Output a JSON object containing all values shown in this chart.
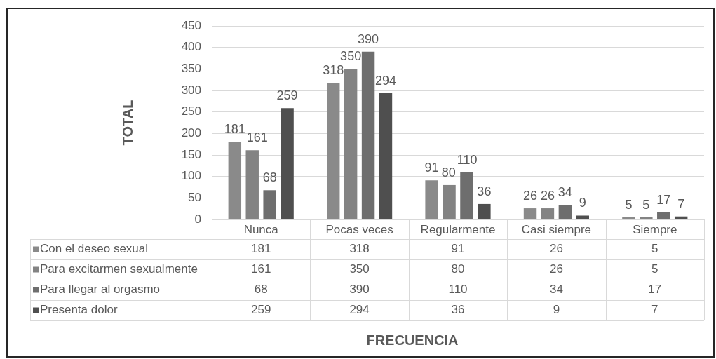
{
  "chart_data": {
    "type": "bar",
    "ylabel": "TOTAL",
    "categories": [
      "Nunca",
      "Pocas veces",
      "Regularmente",
      "Casi siempre",
      "Siempre"
    ],
    "series": [
      {
        "name": "Con el deseo sexual",
        "color": "#8a8a8a",
        "values": [
          181,
          318,
          91,
          26,
          5
        ]
      },
      {
        "name": "Para excitarmen sexualmente",
        "color": "#838383",
        "values": [
          161,
          350,
          80,
          26,
          5
        ]
      },
      {
        "name": "Para llegar al orgasmo",
        "color": "#6e6e6e",
        "values": [
          68,
          390,
          110,
          34,
          17
        ]
      },
      {
        "name": "Presenta dolor",
        "color": "#4f4f4f",
        "values": [
          259,
          294,
          36,
          9,
          7
        ]
      }
    ],
    "ylim": [
      0,
      450
    ],
    "yticks": [
      0,
      50,
      100,
      150,
      200,
      250,
      300,
      350,
      400,
      450
    ],
    "grid": "y",
    "legend": "bottom left",
    "data_labels": true,
    "annotations": [
      "181",
      "318",
      "91",
      "26",
      "5",
      "161",
      "350",
      "80",
      "26",
      "5",
      "68",
      "390",
      "110",
      "34",
      "17",
      "259",
      "294",
      "36",
      "9",
      "7",
      "FRECUENCIA"
    ]
  }
}
